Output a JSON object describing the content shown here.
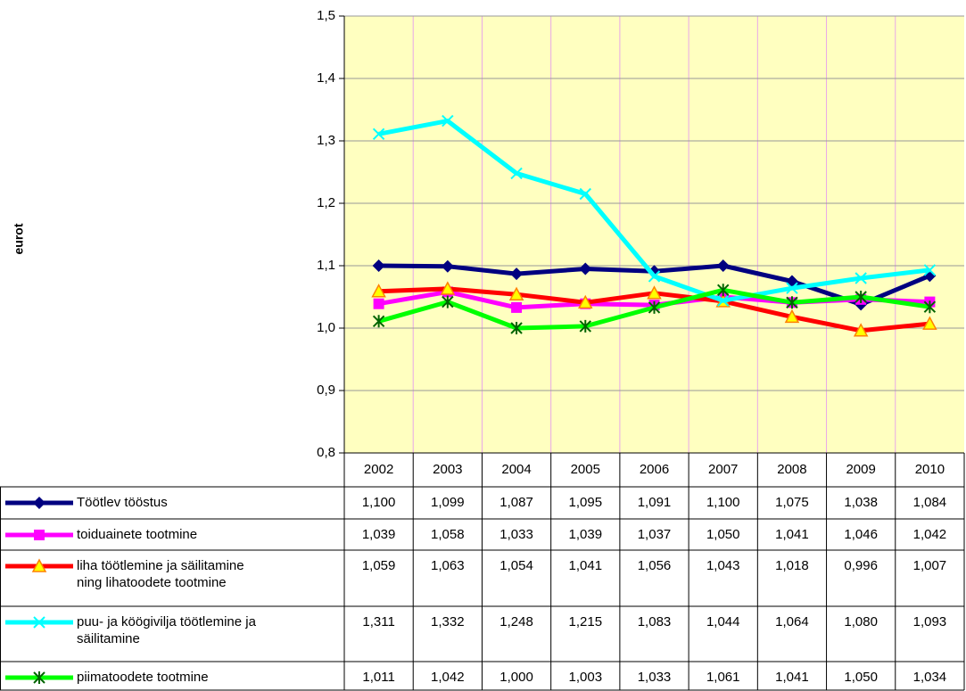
{
  "chart_data": {
    "type": "line",
    "ylabel": "eurot",
    "categories": [
      "2002",
      "2003",
      "2004",
      "2005",
      "2006",
      "2007",
      "2008",
      "2009",
      "2010"
    ],
    "ylim": [
      0.8,
      1.5
    ],
    "yticks": [
      {
        "value": 0.8,
        "label": "0,8"
      },
      {
        "value": 0.9,
        "label": "0,9"
      },
      {
        "value": 1.0,
        "label": "1,0"
      },
      {
        "value": 1.1,
        "label": "1,1"
      },
      {
        "value": 1.2,
        "label": "1,2"
      },
      {
        "value": 1.3,
        "label": "1,3"
      },
      {
        "value": 1.4,
        "label": "1,4"
      },
      {
        "value": 1.5,
        "label": "1,5"
      }
    ],
    "grid": true,
    "series": [
      {
        "name": "Töötlev tööstus",
        "color": "#000080",
        "marker": "diamond",
        "values": [
          1.1,
          1.099,
          1.087,
          1.095,
          1.091,
          1.1,
          1.075,
          1.038,
          1.084
        ],
        "value_labels": [
          "1,100",
          "1,099",
          "1,087",
          "1,095",
          "1,091",
          "1,100",
          "1,075",
          "1,038",
          "1,084"
        ]
      },
      {
        "name": "toiduainete tootmine",
        "color": "#ff00ff",
        "marker": "square",
        "values": [
          1.039,
          1.058,
          1.033,
          1.039,
          1.037,
          1.05,
          1.041,
          1.046,
          1.042
        ],
        "value_labels": [
          "1,039",
          "1,058",
          "1,033",
          "1,039",
          "1,037",
          "1,050",
          "1,041",
          "1,046",
          "1,042"
        ]
      },
      {
        "name": "liha töötlemine ja säilitamine\nning lihatoodete tootmine",
        "color": "#ff0000",
        "marker": "triangle",
        "values": [
          1.059,
          1.063,
          1.054,
          1.041,
          1.056,
          1.043,
          1.018,
          0.996,
          1.007
        ],
        "value_labels": [
          "1,059",
          "1,063",
          "1,054",
          "1,041",
          "1,056",
          "1,043",
          "1,018",
          "0,996",
          "1,007"
        ]
      },
      {
        "name": "puu- ja köögivilja töötlemine ja\nsäilitamine",
        "color": "#00ffff",
        "marker": "x",
        "values": [
          1.311,
          1.332,
          1.248,
          1.215,
          1.083,
          1.044,
          1.064,
          1.08,
          1.093
        ],
        "value_labels": [
          "1,311",
          "1,332",
          "1,248",
          "1,215",
          "1,083",
          "1,044",
          "1,064",
          "1,080",
          "1,093"
        ]
      },
      {
        "name": "piimatoodete tootmine",
        "color": "#00ff00",
        "marker": "star",
        "values": [
          1.011,
          1.042,
          1.0,
          1.003,
          1.033,
          1.061,
          1.041,
          1.05,
          1.034
        ],
        "value_labels": [
          "1,011",
          "1,042",
          "1,000",
          "1,003",
          "1,033",
          "1,061",
          "1,041",
          "1,050",
          "1,034"
        ]
      }
    ]
  }
}
